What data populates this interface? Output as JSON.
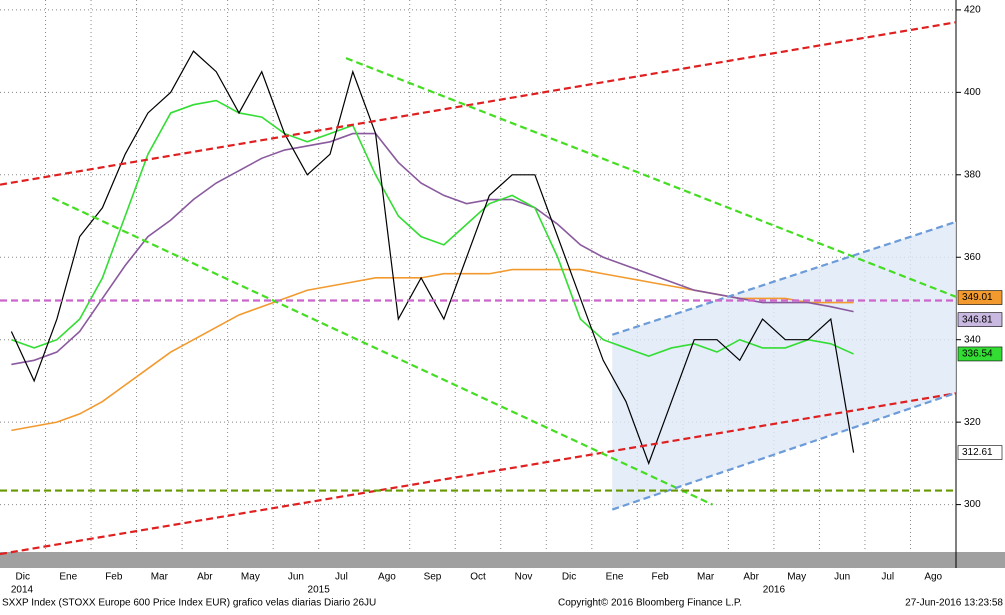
{
  "chart_data": {
    "type": "line",
    "categories": [
      "Dic",
      null,
      "Ene",
      null,
      "Feb",
      null,
      "Mar",
      null,
      "Abr",
      null,
      "May",
      null,
      "Jun",
      null,
      "Jul",
      null,
      "Ago",
      null,
      "Sep",
      null,
      "Oct",
      null,
      "Nov",
      null,
      "Dic",
      null,
      "Ene",
      null,
      "Feb",
      null,
      "Mar",
      null,
      "Abr",
      null,
      "May",
      null,
      "Jun",
      null,
      "Jul",
      null,
      "Ago",
      null
    ],
    "year_categories": [
      "2014",
      null,
      null,
      null,
      null,
      null,
      null,
      null,
      null,
      null,
      null,
      null,
      null,
      null,
      "2015",
      null,
      null,
      null,
      null,
      null,
      null,
      null,
      null,
      null,
      null,
      null,
      null,
      null,
      null,
      null,
      null,
      null,
      null,
      null,
      "2016",
      null,
      null,
      null,
      null,
      null,
      null,
      null
    ],
    "series": [
      {
        "color": "#000000",
        "values": [
          342,
          330,
          345,
          365,
          372,
          385,
          395,
          400,
          410,
          405,
          395,
          405,
          390,
          380,
          385,
          405,
          390,
          345,
          355,
          345,
          360,
          375,
          380,
          380,
          365,
          350,
          335,
          325,
          310,
          325,
          340,
          340,
          335,
          345,
          340,
          340,
          345,
          312.61,
          null,
          null,
          null,
          null
        ]
      },
      {
        "color": "#33dd33",
        "values": [
          340,
          338,
          340,
          345,
          355,
          370,
          385,
          395,
          397,
          398,
          395,
          394,
          390,
          388,
          390,
          392,
          380,
          370,
          365,
          363,
          368,
          373,
          375,
          372,
          360,
          345,
          340,
          338,
          336,
          338,
          339,
          337,
          340,
          338,
          338,
          340,
          339,
          336.54,
          null,
          null,
          null,
          null
        ]
      },
      {
        "color": "#8a5a9e",
        "values": [
          334,
          335,
          337,
          342,
          350,
          358,
          365,
          369,
          374,
          378,
          381,
          384,
          386,
          387,
          388,
          390,
          390,
          383,
          378,
          375,
          373,
          374,
          374,
          372,
          368,
          363,
          360,
          358,
          356,
          354,
          352,
          351,
          350,
          349,
          349,
          349,
          348,
          346.81,
          null,
          null,
          null,
          null
        ]
      },
      {
        "color": "#f29a2e",
        "values": [
          318,
          319,
          320,
          322,
          325,
          329,
          333,
          337,
          340,
          343,
          346,
          348,
          350,
          352,
          353,
          354,
          355,
          355,
          355,
          356,
          356,
          356,
          357,
          357,
          357,
          357,
          356,
          355,
          354,
          353,
          352,
          351,
          350,
          350,
          350,
          349,
          349,
          349.01,
          null,
          null,
          null,
          null
        ]
      }
    ],
    "tag_colors": [
      "#ffffff",
      "#33dd33",
      "#c9b8e0",
      "#f29a2e"
    ],
    "trendlines": [
      {
        "color": "#e02020",
        "x": [
          0,
          42
        ],
        "y": [
          377.6,
          417
        ]
      },
      {
        "color": "#e02020",
        "x": [
          0,
          42
        ],
        "y": [
          288,
          327
        ]
      },
      {
        "color": "#44dd22",
        "x": [
          15.2,
          42
        ],
        "y": [
          408.3,
          350.4
        ]
      },
      {
        "color": "#44dd22",
        "x": [
          2.3,
          31.3
        ],
        "y": [
          374.4,
          300
        ]
      },
      {
        "color": "#6b9bd8",
        "x": [
          26.9,
          42
        ],
        "y": [
          341.2,
          368.6
        ]
      },
      {
        "color": "#6b9bd8",
        "x": [
          26.9,
          42
        ],
        "y": [
          298.8,
          327.1
        ]
      },
      {
        "color": "#cc66cc",
        "x": [
          0,
          42
        ],
        "y": [
          349.5,
          349.5
        ]
      },
      {
        "color": "#669900",
        "x": [
          0,
          42
        ],
        "y": [
          303.4,
          303.4
        ]
      }
    ],
    "ylim": [
      288.5,
      422.4
    ],
    "yticks": [
      300,
      320,
      340,
      360,
      380,
      400,
      420
    ],
    "grid": true,
    "footer": {
      "left": "SXXP Index (STOXX Europe 600 Price Index EUR) grafico velas diarias  Diario 26JU",
      "center": "Copyright© 2016 Bloomberg Finance L.P.",
      "right": "27-Jun-2016 13:23:58"
    }
  }
}
